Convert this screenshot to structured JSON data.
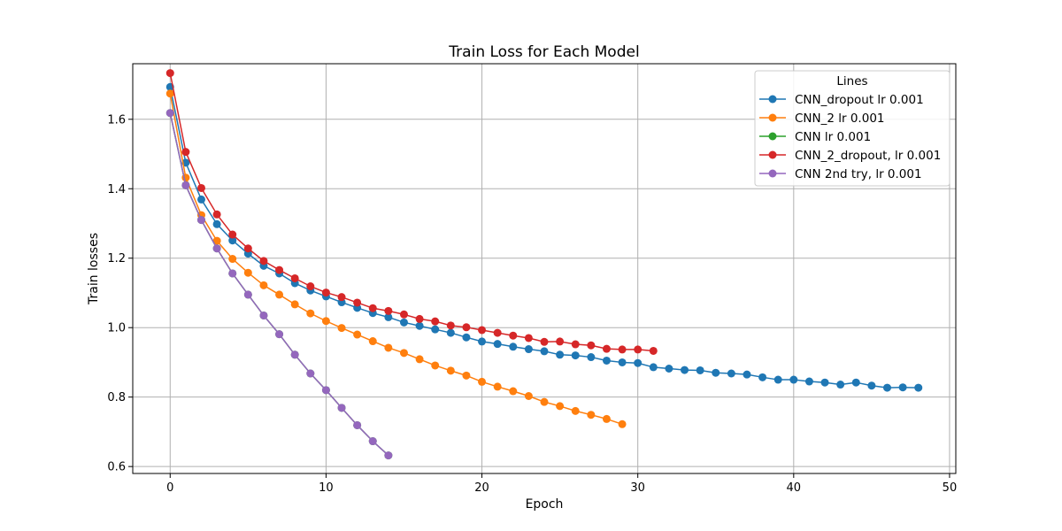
{
  "chart_data": {
    "type": "line",
    "title": "Train Loss for Each Model",
    "xlabel": "Epoch",
    "ylabel": "Train losses",
    "xlim": [
      -2.4,
      50.4
    ],
    "ylim": [
      0.58,
      1.76
    ],
    "xticks": [
      0,
      10,
      20,
      30,
      40,
      50
    ],
    "yticks": [
      0.6,
      0.8,
      1.0,
      1.2,
      1.4,
      1.6
    ],
    "xtick_labels": [
      "0",
      "10",
      "20",
      "30",
      "40",
      "50"
    ],
    "ytick_labels": [
      "0.6",
      "0.8",
      "1.0",
      "1.2",
      "1.4",
      "1.6"
    ],
    "grid": true,
    "legend_title": "Lines",
    "legend_position": "top-right",
    "series": [
      {
        "name": "CNN_dropout lr 0.001",
        "color": "#1f77b4",
        "values": [
          1.693,
          1.475,
          1.369,
          1.298,
          1.251,
          1.213,
          1.178,
          1.156,
          1.128,
          1.107,
          1.09,
          1.073,
          1.057,
          1.042,
          1.03,
          1.015,
          1.005,
          0.995,
          0.985,
          0.972,
          0.96,
          0.953,
          0.945,
          0.938,
          0.932,
          0.922,
          0.92,
          0.915,
          0.905,
          0.9,
          0.898,
          0.886,
          0.882,
          0.878,
          0.877,
          0.87,
          0.868,
          0.865,
          0.857,
          0.85,
          0.85,
          0.845,
          0.842,
          0.836,
          0.842,
          0.833,
          0.827,
          0.828,
          0.827
        ]
      },
      {
        "name": "CNN_2 lr 0.001",
        "color": "#ff7f0e",
        "values": [
          1.674,
          1.432,
          1.324,
          1.25,
          1.198,
          1.158,
          1.122,
          1.095,
          1.067,
          1.041,
          1.019,
          0.999,
          0.98,
          0.961,
          0.942,
          0.927,
          0.909,
          0.891,
          0.876,
          0.862,
          0.844,
          0.83,
          0.817,
          0.803,
          0.786,
          0.774,
          0.76,
          0.749,
          0.737,
          0.722
        ]
      },
      {
        "name": "CNN lr 0.001",
        "color": "#2ca02c",
        "values": [
          1.618,
          1.41,
          1.31,
          1.228,
          1.156,
          1.095,
          1.035,
          0.981,
          0.922,
          0.868,
          0.82,
          0.769,
          0.719,
          0.673,
          0.632
        ]
      },
      {
        "name": "CNN_2_dropout, lr 0.001",
        "color": "#d62728",
        "values": [
          1.733,
          1.506,
          1.402,
          1.326,
          1.268,
          1.228,
          1.192,
          1.166,
          1.142,
          1.119,
          1.101,
          1.088,
          1.072,
          1.056,
          1.048,
          1.038,
          1.025,
          1.018,
          1.006,
          1.001,
          0.993,
          0.985,
          0.977,
          0.97,
          0.959,
          0.96,
          0.952,
          0.949,
          0.939,
          0.937,
          0.937,
          0.933
        ]
      },
      {
        "name": "CNN 2nd try, lr 0.001",
        "color": "#9467bd",
        "values": [
          1.618,
          1.41,
          1.31,
          1.228,
          1.156,
          1.095,
          1.035,
          0.981,
          0.922,
          0.868,
          0.82,
          0.769,
          0.719,
          0.673,
          0.632
        ]
      }
    ]
  }
}
